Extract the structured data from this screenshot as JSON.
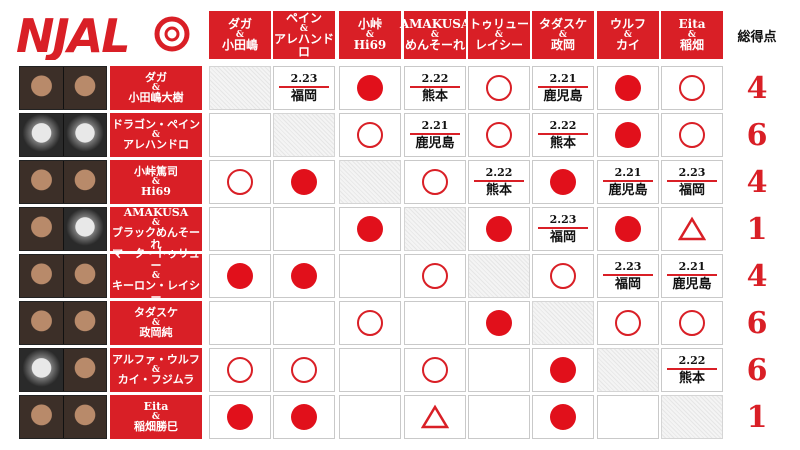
{
  "logo": {
    "text": "NJAL"
  },
  "total_header": "総得点",
  "opponents": [
    {
      "top": "ダガ",
      "bottom": "小田嶋"
    },
    {
      "top": "ペイン",
      "bottom": "アレハンドロ"
    },
    {
      "top": "小峠",
      "bottom": "Hi69"
    },
    {
      "top": "AMAKUSA",
      "bottom": "めんそーれ"
    },
    {
      "top": "トゥリュー",
      "bottom": "レイシー"
    },
    {
      "top": "タダスケ",
      "bottom": "政岡"
    },
    {
      "top": "ウルフ",
      "bottom": "カイ"
    },
    {
      "top": "Eita",
      "bottom": "稲畑"
    }
  ],
  "rows": [
    {
      "name1": "ダガ",
      "name2": "小田嶋大樹",
      "masks": [
        false,
        false
      ],
      "cells": [
        {
          "t": "self"
        },
        {
          "t": "sched",
          "date": "2.23",
          "city": "福岡"
        },
        {
          "t": "win"
        },
        {
          "t": "sched",
          "date": "2.22",
          "city": "熊本"
        },
        {
          "t": "loss"
        },
        {
          "t": "sched",
          "date": "2.21",
          "city": "鹿児島"
        },
        {
          "t": "win"
        },
        {
          "t": "loss"
        }
      ],
      "total": "4"
    },
    {
      "name1": "ドラゴン・ペイン",
      "name2": "アレハンドロ",
      "masks": [
        true,
        true
      ],
      "cells": [
        {
          "t": "empty"
        },
        {
          "t": "self"
        },
        {
          "t": "loss"
        },
        {
          "t": "sched",
          "date": "2.21",
          "city": "鹿児島"
        },
        {
          "t": "loss"
        },
        {
          "t": "sched",
          "date": "2.22",
          "city": "熊本"
        },
        {
          "t": "win"
        },
        {
          "t": "loss"
        }
      ],
      "total": "6"
    },
    {
      "name1": "小峠篤司",
      "name2": "Hi69",
      "masks": [
        false,
        false
      ],
      "cells": [
        {
          "t": "loss"
        },
        {
          "t": "win"
        },
        {
          "t": "self"
        },
        {
          "t": "loss"
        },
        {
          "t": "sched",
          "date": "2.22",
          "city": "熊本"
        },
        {
          "t": "win"
        },
        {
          "t": "sched",
          "date": "2.21",
          "city": "鹿児島"
        },
        {
          "t": "sched",
          "date": "2.23",
          "city": "福岡"
        }
      ],
      "total": "4"
    },
    {
      "name1": "AMAKUSA",
      "name2": "ブラックめんそーれ",
      "masks": [
        false,
        true
      ],
      "cells": [
        {
          "t": "empty"
        },
        {
          "t": "empty"
        },
        {
          "t": "win"
        },
        {
          "t": "self"
        },
        {
          "t": "win"
        },
        {
          "t": "sched",
          "date": "2.23",
          "city": "福岡"
        },
        {
          "t": "win"
        },
        {
          "t": "draw"
        }
      ],
      "total": "1"
    },
    {
      "name1": "マーク・トゥリュー",
      "name2": "キーロン・レイシー",
      "masks": [
        false,
        false
      ],
      "cells": [
        {
          "t": "win"
        },
        {
          "t": "win"
        },
        {
          "t": "empty"
        },
        {
          "t": "loss"
        },
        {
          "t": "self"
        },
        {
          "t": "loss"
        },
        {
          "t": "sched",
          "date": "2.23",
          "city": "福岡"
        },
        {
          "t": "sched",
          "date": "2.21",
          "city": "鹿児島"
        }
      ],
      "total": "4"
    },
    {
      "name1": "タダスケ",
      "name2": "政岡純",
      "masks": [
        false,
        false
      ],
      "cells": [
        {
          "t": "empty"
        },
        {
          "t": "empty"
        },
        {
          "t": "loss"
        },
        {
          "t": "empty"
        },
        {
          "t": "win"
        },
        {
          "t": "self"
        },
        {
          "t": "loss"
        },
        {
          "t": "loss"
        }
      ],
      "total": "6"
    },
    {
      "name1": "アルファ・ウルフ",
      "name2": "カイ・フジムラ",
      "masks": [
        true,
        false
      ],
      "cells": [
        {
          "t": "loss"
        },
        {
          "t": "loss"
        },
        {
          "t": "empty"
        },
        {
          "t": "loss"
        },
        {
          "t": "empty"
        },
        {
          "t": "win"
        },
        {
          "t": "self"
        },
        {
          "t": "sched",
          "date": "2.22",
          "city": "熊本"
        }
      ],
      "total": "6"
    },
    {
      "name1": "Eita",
      "name2": "稲畑勝巳",
      "masks": [
        false,
        false
      ],
      "cells": [
        {
          "t": "win"
        },
        {
          "t": "win"
        },
        {
          "t": "empty"
        },
        {
          "t": "draw"
        },
        {
          "t": "empty"
        },
        {
          "t": "win"
        },
        {
          "t": "empty"
        },
        {
          "t": "self"
        }
      ],
      "total": "1"
    }
  ],
  "colors": {
    "accent": "#d91f26",
    "win_mark": "#e1101b"
  },
  "marks": {
    "win": "filled-circle",
    "loss": "open-circle",
    "draw": "open-triangle"
  }
}
